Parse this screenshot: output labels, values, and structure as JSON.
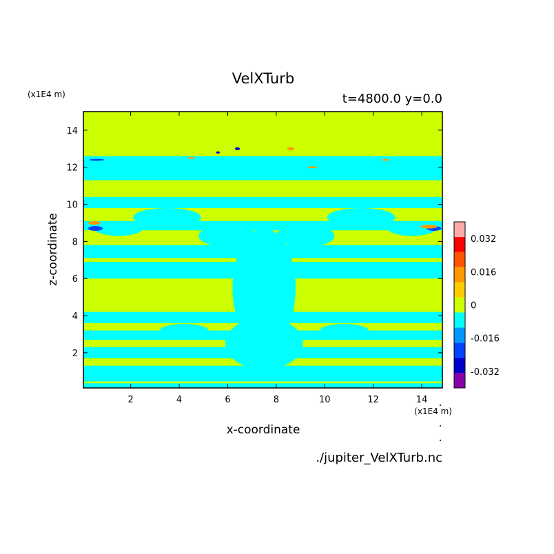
{
  "chart_data": {
    "type": "heatmap",
    "title": "VelXTurb",
    "subtitle": "t=4800.0 y=0.0",
    "xlabel": "x-coordinate",
    "ylabel": "z-coordinate",
    "x_unit_note": "(x1E4 m)",
    "y_unit_note": "(x1E4 m)",
    "file_label": "./jupiter_VelXTurb.nc",
    "xlim": [
      0.05,
      14.85
    ],
    "ylim": [
      0.1,
      15.0
    ],
    "x_ticks": [
      "2",
      "4",
      "6",
      "8",
      "10",
      "12",
      "14"
    ],
    "y_ticks": [
      "2",
      "4",
      "6",
      "8",
      "10",
      "12",
      "14"
    ],
    "x_tick_values": [
      2,
      4,
      6,
      8,
      10,
      12,
      14
    ],
    "y_tick_values": [
      2,
      4,
      6,
      8,
      10,
      12,
      14
    ],
    "colorbar": {
      "levels": [
        -0.04,
        -0.032,
        -0.024,
        -0.016,
        -0.008,
        0,
        0.008,
        0.016,
        0.024,
        0.032,
        0.04
      ],
      "colors": [
        "#8800aa",
        "#0000cc",
        "#0044ff",
        "#0099ff",
        "#00ffff",
        "#ccff00",
        "#ffcc00",
        "#ff9900",
        "#ff5500",
        "#ff0000",
        "#ffaaaa"
      ],
      "tick_labels": [
        "0.032",
        "0.016",
        "0",
        "-0.016",
        "-0.032"
      ],
      "tick_values": [
        0.032,
        0.016,
        0,
        -0.016,
        -0.032
      ]
    },
    "background_value": 0.002,
    "bands": [
      {
        "z0": 0.1,
        "z1": 0.35,
        "value": -0.006
      },
      {
        "z0": 0.45,
        "z1": 1.3,
        "value": -0.006
      },
      {
        "z0": 1.7,
        "z1": 2.3,
        "value": -0.006
      },
      {
        "z0": 2.7,
        "z1": 3.2,
        "value": -0.006
      },
      {
        "z0": 3.6,
        "z1": 4.2,
        "value": -0.006
      },
      {
        "z0": 6.0,
        "z1": 6.9,
        "value": -0.006
      },
      {
        "z0": 7.1,
        "z1": 7.8,
        "value": -0.006
      },
      {
        "z0": 8.6,
        "z1": 9.1,
        "value": -0.006
      },
      {
        "z0": 9.8,
        "z1": 10.4,
        "value": -0.006
      },
      {
        "z0": 11.3,
        "z1": 12.6,
        "value": -0.006
      }
    ],
    "blobs": [
      {
        "x": 7.5,
        "z": 5.5,
        "rx": 1.3,
        "rz": 3.2,
        "value": -0.006
      },
      {
        "x": 7.5,
        "z": 2.5,
        "rx": 1.6,
        "rz": 1.4,
        "value": -0.006
      },
      {
        "x": 6.0,
        "z": 8.3,
        "rx": 1.2,
        "rz": 0.6,
        "value": -0.006
      },
      {
        "x": 9.2,
        "z": 8.3,
        "rx": 1.2,
        "rz": 0.6,
        "value": -0.006
      },
      {
        "x": 3.5,
        "z": 9.3,
        "rx": 1.4,
        "rz": 0.5,
        "value": -0.006
      },
      {
        "x": 11.5,
        "z": 9.3,
        "rx": 1.4,
        "rz": 0.5,
        "value": -0.006
      },
      {
        "x": 1.5,
        "z": 8.7,
        "rx": 1.0,
        "rz": 0.4,
        "value": -0.006
      },
      {
        "x": 13.6,
        "z": 8.7,
        "rx": 1.0,
        "rz": 0.4,
        "value": -0.006
      },
      {
        "x": 4.2,
        "z": 3.2,
        "rx": 1.0,
        "rz": 0.35,
        "value": -0.006
      },
      {
        "x": 10.8,
        "z": 3.2,
        "rx": 1.0,
        "rz": 0.35,
        "value": -0.006
      },
      {
        "x": 0.55,
        "z": 8.7,
        "rx": 0.3,
        "rz": 0.13,
        "value": -0.02
      },
      {
        "x": 14.5,
        "z": 8.7,
        "rx": 0.3,
        "rz": 0.13,
        "value": -0.02
      },
      {
        "x": 0.5,
        "z": 9.0,
        "rx": 0.25,
        "rz": 0.1,
        "value": 0.018
      },
      {
        "x": 14.3,
        "z": 8.8,
        "rx": 0.35,
        "rz": 0.1,
        "value": 0.018
      },
      {
        "x": 6.4,
        "z": 13.0,
        "rx": 0.1,
        "rz": 0.08,
        "value": -0.03
      },
      {
        "x": 8.6,
        "z": 13.0,
        "rx": 0.15,
        "rz": 0.08,
        "value": 0.02
      },
      {
        "x": 5.6,
        "z": 12.8,
        "rx": 0.08,
        "rz": 0.06,
        "value": -0.03
      },
      {
        "x": 4.5,
        "z": 12.5,
        "rx": 0.15,
        "rz": 0.05,
        "value": 0.02
      },
      {
        "x": 9.5,
        "z": 12.0,
        "rx": 0.2,
        "rz": 0.05,
        "value": 0.02
      },
      {
        "x": 12.5,
        "z": 12.4,
        "rx": 0.15,
        "rz": 0.05,
        "value": 0.02
      },
      {
        "x": 0.6,
        "z": 12.4,
        "rx": 0.3,
        "rz": 0.05,
        "value": -0.02
      }
    ]
  }
}
